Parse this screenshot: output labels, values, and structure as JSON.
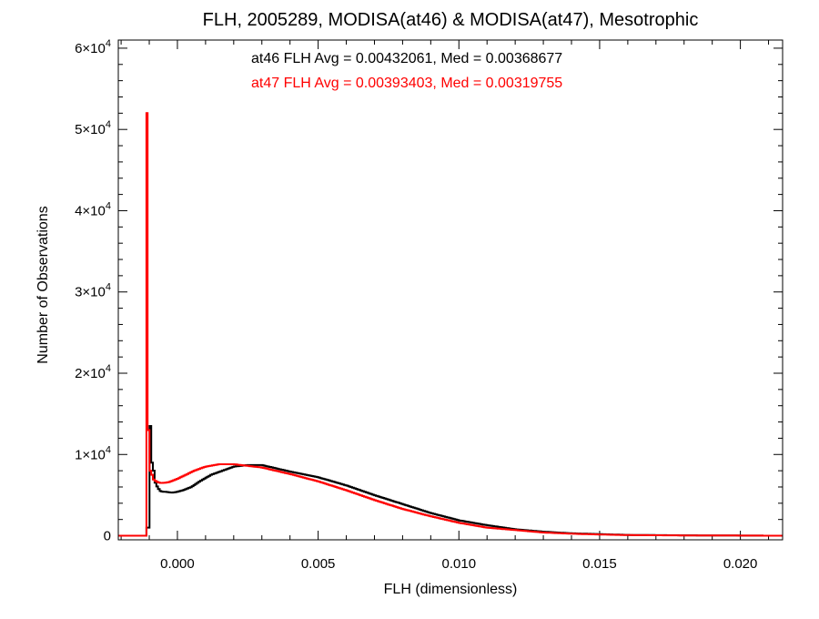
{
  "chart_data": {
    "type": "histogram",
    "title": "FLH, 2005289, MODISA(at46) & MODISA(at47), Mesotrophic",
    "xlabel": "FLH (dimensionless)",
    "ylabel": "Number of Observations",
    "xlim": [
      -0.0021,
      0.0215
    ],
    "ylim": [
      -500,
      61000
    ],
    "x_ticks": [
      {
        "value": 0.0,
        "label": "0.000"
      },
      {
        "value": 0.005,
        "label": "0.005"
      },
      {
        "value": 0.01,
        "label": "0.010"
      },
      {
        "value": 0.015,
        "label": "0.015"
      },
      {
        "value": 0.02,
        "label": "0.020"
      }
    ],
    "y_ticks": [
      {
        "value": 0,
        "mantissa": "0",
        "exponent": ""
      },
      {
        "value": 10000,
        "mantissa": "1×10",
        "exponent": "4"
      },
      {
        "value": 20000,
        "mantissa": "2×10",
        "exponent": "4"
      },
      {
        "value": 30000,
        "mantissa": "3×10",
        "exponent": "4"
      },
      {
        "value": 40000,
        "mantissa": "4×10",
        "exponent": "4"
      },
      {
        "value": 50000,
        "mantissa": "5×10",
        "exponent": "4"
      },
      {
        "value": 60000,
        "mantissa": "6×10",
        "exponent": "4"
      }
    ],
    "annotations": [
      {
        "text": "at46 FLH Avg = 0.00432061, Med = 0.00368677",
        "color": "#000000"
      },
      {
        "text": "at47 FLH Avg = 0.00393403, Med = 0.00319755",
        "color": "#ff0000"
      }
    ],
    "series": [
      {
        "color": "#000000",
        "x": [
          -0.0021,
          -0.0011,
          -0.00099,
          -0.00093,
          -0.00087,
          -0.0008,
          -0.0007,
          -0.0006,
          -0.0005,
          -0.0004,
          -0.0002,
          0.0,
          0.0002,
          0.0005,
          0.0008,
          0.0012,
          0.0016,
          0.002,
          0.0025,
          0.003,
          0.0035,
          0.004,
          0.005,
          0.006,
          0.007,
          0.008,
          0.009,
          0.01,
          0.011,
          0.012,
          0.013,
          0.014,
          0.015,
          0.016,
          0.018,
          0.02,
          0.0215
        ],
        "values": [
          0,
          0,
          1000,
          13500,
          9000,
          6700,
          5900,
          5500,
          5400,
          5400,
          5300,
          5400,
          5600,
          6000,
          6700,
          7500,
          8000,
          8500,
          8700,
          8700,
          8300,
          7900,
          7200,
          6200,
          5000,
          3900,
          2800,
          1900,
          1300,
          800,
          500,
          300,
          200,
          100,
          50,
          20,
          0
        ]
      },
      {
        "color": "#ff0000",
        "x": [
          -0.0021,
          -0.0011,
          -0.00106,
          -0.00099,
          -0.00093,
          -0.00087,
          -0.0008,
          -0.0007,
          -0.0006,
          -0.0005,
          -0.0003,
          0.0,
          0.0003,
          0.0006,
          0.001,
          0.0015,
          0.002,
          0.0025,
          0.003,
          0.0035,
          0.004,
          0.005,
          0.006,
          0.007,
          0.008,
          0.009,
          0.01,
          0.011,
          0.012,
          0.013,
          0.014,
          0.015,
          0.016,
          0.018,
          0.02,
          0.0215
        ],
        "values": [
          0,
          0,
          52000,
          13000,
          8000,
          7000,
          6800,
          6600,
          6500,
          6500,
          6600,
          7000,
          7500,
          8000,
          8500,
          8800,
          8800,
          8600,
          8400,
          8000,
          7600,
          6700,
          5600,
          4400,
          3300,
          2400,
          1600,
          1000,
          700,
          400,
          250,
          150,
          80,
          40,
          20,
          0
        ]
      }
    ]
  }
}
